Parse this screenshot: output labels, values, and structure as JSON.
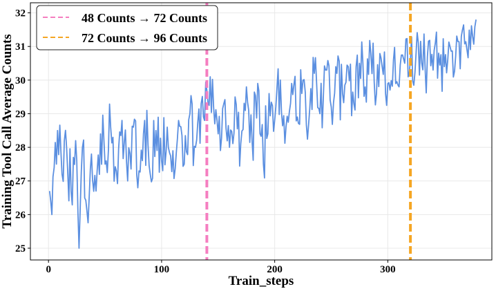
{
  "chart_data": {
    "type": "line",
    "xlabel": "Train_steps",
    "ylabel": "Training Tool Call Average Counts",
    "xlim": [
      -16,
      392
    ],
    "ylim": [
      24.65,
      32.3
    ],
    "xticks": [
      0,
      100,
      200,
      300
    ],
    "yticks": [
      25,
      26,
      27,
      28,
      29,
      30,
      31,
      32
    ],
    "grid": true,
    "legend_position": "top-left",
    "series": [
      {
        "color": "#5b8fe0",
        "anchors": [
          [
            1,
            26.7
          ],
          [
            3,
            26.0
          ],
          [
            5,
            27.4
          ],
          [
            8,
            28.5
          ],
          [
            12,
            27.2
          ],
          [
            16,
            28.0
          ],
          [
            20,
            26.7
          ],
          [
            24,
            28.2
          ],
          [
            27,
            25.0
          ],
          [
            30,
            28.0
          ],
          [
            34,
            26.1
          ],
          [
            38,
            27.8
          ],
          [
            42,
            26.7
          ],
          [
            46,
            28.4
          ],
          [
            50,
            27.5
          ],
          [
            55,
            28.6
          ],
          [
            60,
            27.3
          ],
          [
            65,
            28.8
          ],
          [
            70,
            27.0
          ],
          [
            75,
            28.6
          ],
          [
            80,
            27.3
          ],
          [
            85,
            28.8
          ],
          [
            90,
            27.2
          ],
          [
            95,
            28.5
          ],
          [
            100,
            27.6
          ],
          [
            105,
            28.6
          ],
          [
            110,
            27.9
          ],
          [
            115,
            28.8
          ],
          [
            120,
            27.5
          ],
          [
            125,
            29.0
          ],
          [
            130,
            28.0
          ],
          [
            135,
            29.3
          ],
          [
            140,
            29.7
          ],
          [
            143,
            30.1
          ],
          [
            146,
            29.2
          ],
          [
            150,
            28.4
          ],
          [
            155,
            29.3
          ],
          [
            160,
            28.0
          ],
          [
            165,
            29.5
          ],
          [
            170,
            28.1
          ],
          [
            175,
            29.8
          ],
          [
            180,
            28.2
          ],
          [
            185,
            29.9
          ],
          [
            190,
            27.5
          ],
          [
            195,
            29.6
          ],
          [
            200,
            28.8
          ],
          [
            205,
            30.0
          ],
          [
            210,
            28.6
          ],
          [
            215,
            29.9
          ],
          [
            220,
            28.9
          ],
          [
            225,
            30.0
          ],
          [
            230,
            28.7
          ],
          [
            235,
            30.2
          ],
          [
            240,
            29.0
          ],
          [
            245,
            30.3
          ],
          [
            250,
            29.2
          ],
          [
            255,
            30.2
          ],
          [
            260,
            29.6
          ],
          [
            265,
            30.4
          ],
          [
            270,
            29.3
          ],
          [
            275,
            30.5
          ],
          [
            280,
            29.8
          ],
          [
            285,
            30.8
          ],
          [
            290,
            29.6
          ],
          [
            295,
            30.4
          ],
          [
            300,
            29.9
          ],
          [
            305,
            30.6
          ],
          [
            310,
            29.8
          ],
          [
            315,
            30.5
          ],
          [
            320,
            30.6
          ],
          [
            325,
            30.8
          ],
          [
            330,
            30.5
          ],
          [
            335,
            30.7
          ],
          [
            340,
            30.3
          ],
          [
            345,
            30.8
          ],
          [
            350,
            30.4
          ],
          [
            355,
            31.0
          ],
          [
            360,
            30.7
          ],
          [
            365,
            31.3
          ],
          [
            370,
            30.9
          ],
          [
            375,
            31.3
          ],
          [
            378,
            31.8
          ]
        ],
        "noise_amplitude": [
          0.7,
          1.1
        ]
      }
    ],
    "vlines": [
      {
        "x": 140,
        "color": "#f57ec0",
        "label": "48 Counts → 72 Counts"
      },
      {
        "x": 320,
        "color": "#f5a623",
        "label": "72 Counts → 96 Counts"
      }
    ]
  }
}
